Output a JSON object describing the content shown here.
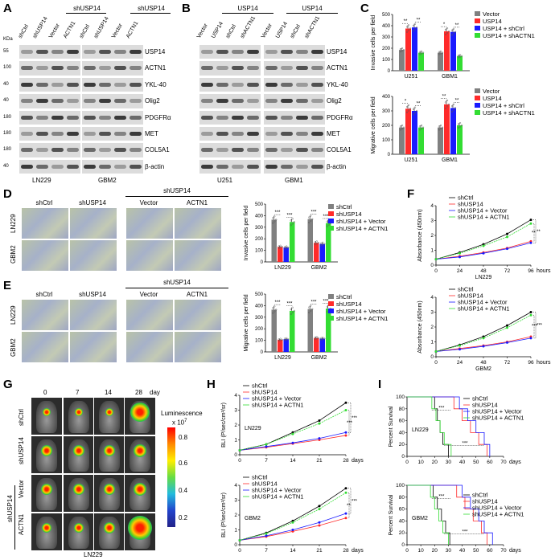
{
  "panels": {
    "A": {
      "letter": "A",
      "group_label": "shUSP14",
      "group_label2": "shUSP14",
      "columns": [
        "shCtrl",
        "shUSP14",
        "Vector",
        "ACTN1",
        "shCtrl",
        "shUSP14",
        "Vector",
        "ACTN1"
      ],
      "kda_header": "KDa",
      "rows": [
        {
          "name": "USP14",
          "kda": "55"
        },
        {
          "name": "ACTN1",
          "kda": "100"
        },
        {
          "name": "YKL-40",
          "kda": "40"
        },
        {
          "name": "Olig2",
          "kda": "40"
        },
        {
          "name": "PDGFRα",
          "kda": "180"
        },
        {
          "name": "MET",
          "kda": "180"
        },
        {
          "name": "COL5A1",
          "kda": "180"
        },
        {
          "name": "β-actin",
          "kda": "40"
        }
      ],
      "cell_lines": [
        "LN229",
        "GBM2"
      ]
    },
    "B": {
      "letter": "B",
      "group_label": "USP14",
      "group_label2": "USP14",
      "columns": [
        "Vector",
        "USP14",
        "shCtrl",
        "shACTN1",
        "Vector",
        "USP14",
        "shCtrl",
        "shACTN1"
      ],
      "rows": [
        {
          "name": "USP14",
          "kda": "55"
        },
        {
          "name": "ACTN1",
          "kda": "100"
        },
        {
          "name": "YKL-40",
          "kda": "40"
        },
        {
          "name": "Olig2",
          "kda": "40"
        },
        {
          "name": "PDGFRα",
          "kda": "180"
        },
        {
          "name": "MET",
          "kda": "180"
        },
        {
          "name": "COL5A1",
          "kda": "180"
        },
        {
          "name": "β-actin",
          "kda": "40"
        }
      ],
      "cell_lines": [
        "U251",
        "GBM1"
      ]
    },
    "C": {
      "letter": "C"
    },
    "D": {
      "letter": "D",
      "group_label": "shUSP14",
      "columns": [
        "shCtrl",
        "shUSP14",
        "Vector",
        "ACTN1"
      ],
      "rows": [
        "LN229",
        "GBM2"
      ]
    },
    "E": {
      "letter": "E",
      "group_label": "shUSP14",
      "columns": [
        "shCtrl",
        "shUSP14",
        "Vector",
        "ACTN1"
      ],
      "rows": [
        "LN229",
        "GBM2"
      ]
    },
    "F": {
      "letter": "F"
    },
    "G": {
      "letter": "G",
      "days": [
        "0",
        "7",
        "14",
        "28"
      ],
      "day_unit": "day",
      "rows": [
        "shCtrl",
        "shUSP14",
        "Vector",
        "ACTN1"
      ],
      "group_label": "shUSP14",
      "cell_line": "LN229",
      "scale_title": "Luminescence",
      "scale_exp": "x 10",
      "scale_exp_sup": "7",
      "scale_ticks": [
        "0.8",
        "0.6",
        "0.4",
        "0.2"
      ]
    },
    "H": {
      "letter": "H"
    },
    "I": {
      "letter": "I"
    }
  },
  "colors": {
    "gray": "#808080",
    "red": "#ff2a2a",
    "blue": "#1a1aff",
    "green": "#33dd33",
    "black": "#000000"
  },
  "chart_data": [
    {
      "id": "C-invasive",
      "type": "bar",
      "ylabel": "Invasive cells per field",
      "ylim": [
        0,
        500
      ],
      "yticks": [
        0,
        100,
        200,
        300,
        400,
        500
      ],
      "categories": [
        "U251",
        "GBM1"
      ],
      "series": [
        {
          "name": "Vector",
          "values": [
            185,
            160
          ]
        },
        {
          "name": "USP14",
          "values": [
            375,
            350
          ]
        },
        {
          "name": "USP14 + shCtrl",
          "values": [
            385,
            345
          ]
        },
        {
          "name": "USP14 + shACTN1",
          "values": [
            160,
            130
          ]
        }
      ],
      "significance": [
        [
          "**",
          "**"
        ],
        [
          "*",
          "**"
        ]
      ],
      "legend": "right"
    },
    {
      "id": "C-migrative",
      "type": "bar",
      "ylabel": "Migrative cells per field",
      "ylim": [
        0,
        400
      ],
      "yticks": [
        0,
        100,
        200,
        300,
        400
      ],
      "categories": [
        "U251",
        "GBM1"
      ],
      "series": [
        {
          "name": "Vector",
          "values": [
            185,
            185
          ]
        },
        {
          "name": "USP14",
          "values": [
            315,
            345
          ]
        },
        {
          "name": "USP14 + shCtrl",
          "values": [
            300,
            320
          ]
        },
        {
          "name": "USP14 + shACTN1",
          "values": [
            185,
            200
          ]
        }
      ],
      "significance": [
        [
          "*",
          "**"
        ],
        [
          "**",
          "**"
        ]
      ],
      "legend": "right"
    },
    {
      "id": "D-invasive",
      "type": "bar",
      "ylabel": "Invasive cells per field",
      "ylim": [
        0,
        500
      ],
      "yticks": [
        0,
        100,
        200,
        300,
        400,
        500
      ],
      "categories": [
        "LN229",
        "GBM2"
      ],
      "series": [
        {
          "name": "shCtrl",
          "values": [
            365,
            370
          ]
        },
        {
          "name": "shUSP14",
          "values": [
            130,
            165
          ]
        },
        {
          "name": "shUSP14 + Vector",
          "values": [
            125,
            155
          ]
        },
        {
          "name": "shUSP14 + ACTN1",
          "values": [
            345,
            335
          ]
        }
      ],
      "significance": [
        [
          "***",
          "***"
        ],
        [
          "***",
          "***"
        ]
      ],
      "legend": "right"
    },
    {
      "id": "E-migrative",
      "type": "bar",
      "ylabel": "Migrative cells per field",
      "ylim": [
        0,
        500
      ],
      "yticks": [
        0,
        100,
        200,
        300,
        400,
        500
      ],
      "categories": [
        "LN229",
        "GBM2"
      ],
      "series": [
        {
          "name": "shCtrl",
          "values": [
            365,
            370
          ]
        },
        {
          "name": "shUSP14",
          "values": [
            105,
            120
          ]
        },
        {
          "name": "shUSP14 + Vector",
          "values": [
            110,
            115
          ]
        },
        {
          "name": "shUSP14 + ACTN1",
          "values": [
            355,
            375
          ]
        }
      ],
      "significance": [
        [
          "***",
          "***"
        ],
        [
          "***",
          "***"
        ]
      ],
      "legend": "right"
    },
    {
      "id": "F-LN229",
      "type": "line",
      "ylabel": "Absorbance (450nm)",
      "xlabel": "LN229",
      "x_unit": "hours",
      "x": [
        0,
        24,
        48,
        72,
        96
      ],
      "ylim": [
        0,
        4
      ],
      "yticks": [
        0,
        1,
        2,
        3,
        4
      ],
      "series": [
        {
          "name": "shCtrl",
          "values": [
            0.4,
            0.85,
            1.4,
            2.1,
            3.05
          ]
        },
        {
          "name": "shUSP14",
          "values": [
            0.4,
            0.6,
            0.85,
            1.15,
            1.6
          ]
        },
        {
          "name": "shUSP14 + Vector",
          "values": [
            0.4,
            0.55,
            0.8,
            1.1,
            1.5
          ]
        },
        {
          "name": "shUSP14 + ACTN1",
          "values": [
            0.4,
            0.8,
            1.3,
            1.9,
            2.8
          ]
        }
      ],
      "significance": [
        "**",
        "**"
      ],
      "legend": "top-left"
    },
    {
      "id": "F-GBM2",
      "type": "line",
      "ylabel": "Absorbance (450nm)",
      "xlabel": "GBM2",
      "x_unit": "hours",
      "x": [
        0,
        24,
        48,
        72,
        96
      ],
      "ylim": [
        0,
        4
      ],
      "yticks": [
        0,
        1,
        2,
        3,
        4
      ],
      "series": [
        {
          "name": "shCtrl",
          "values": [
            0.35,
            0.8,
            1.35,
            2.1,
            3.0
          ]
        },
        {
          "name": "shUSP14",
          "values": [
            0.35,
            0.55,
            0.75,
            1.0,
            1.35
          ]
        },
        {
          "name": "shUSP14 + Vector",
          "values": [
            0.35,
            0.5,
            0.7,
            0.95,
            1.25
          ]
        },
        {
          "name": "shUSP14 + ACTN1",
          "values": [
            0.35,
            0.75,
            1.25,
            1.95,
            2.8
          ]
        }
      ],
      "significance": [
        "***",
        "***"
      ],
      "legend": "top-left"
    },
    {
      "id": "H-LN229",
      "type": "line",
      "ylabel": "BLI (P/sec/cm²/sr)",
      "x_unit": "days",
      "annotation": "LN229",
      "x": [
        0,
        7,
        14,
        21,
        28
      ],
      "ylim": [
        0,
        4
      ],
      "yticks": [
        0,
        1,
        2,
        3,
        4
      ],
      "series": [
        {
          "name": "shCtrl",
          "values": [
            0.3,
            0.7,
            1.5,
            2.3,
            3.5
          ]
        },
        {
          "name": "shUSP14",
          "values": [
            0.3,
            0.5,
            0.75,
            1.0,
            1.3
          ]
        },
        {
          "name": "shUSP14 + Vector",
          "values": [
            0.3,
            0.55,
            0.8,
            1.1,
            1.5
          ]
        },
        {
          "name": "shUSP14 + ACTN1",
          "values": [
            0.3,
            0.7,
            1.4,
            2.1,
            3.0
          ]
        }
      ],
      "significance": [
        "***",
        "***"
      ],
      "legend": "top-left"
    },
    {
      "id": "H-GBM2",
      "type": "line",
      "ylabel": "BLI (P/sec/cm²/sr)",
      "x_unit": "days",
      "annotation": "GBM2",
      "x": [
        0,
        7,
        14,
        21,
        28
      ],
      "ylim": [
        0,
        4
      ],
      "yticks": [
        0,
        1,
        2,
        3,
        4
      ],
      "series": [
        {
          "name": "shCtrl",
          "values": [
            0.3,
            0.8,
            1.6,
            2.6,
            3.8
          ]
        },
        {
          "name": "shUSP14",
          "values": [
            0.3,
            0.55,
            0.9,
            1.3,
            1.8
          ]
        },
        {
          "name": "shUSP14 + Vector",
          "values": [
            0.3,
            0.6,
            1.0,
            1.5,
            2.1
          ]
        },
        {
          "name": "shUSP14 + ACTN1",
          "values": [
            0.3,
            0.75,
            1.5,
            2.4,
            3.5
          ]
        }
      ],
      "significance": [
        "**",
        "***"
      ],
      "legend": "top-left"
    },
    {
      "id": "I-LN229",
      "type": "line",
      "step": true,
      "ylabel": "Percent Survival",
      "x_unit": "days",
      "annotation": "LN229",
      "x": [
        0,
        10,
        20,
        30,
        40,
        50,
        60,
        70
      ],
      "ylim": [
        0,
        100
      ],
      "yticks": [
        0,
        20,
        40,
        60,
        80,
        100
      ],
      "series": [
        {
          "name": "shCtrl",
          "steps": [
            [
              0,
              100
            ],
            [
              18,
              100
            ],
            [
              20,
              80
            ],
            [
              22,
              60
            ],
            [
              24,
              40
            ],
            [
              26,
              20
            ],
            [
              30,
              0
            ]
          ]
        },
        {
          "name": "shUSP14",
          "steps": [
            [
              0,
              100
            ],
            [
              30,
              100
            ],
            [
              34,
              80
            ],
            [
              40,
              60
            ],
            [
              46,
              40
            ],
            [
              52,
              20
            ],
            [
              58,
              0
            ]
          ]
        },
        {
          "name": "shUSP14 + Vector",
          "steps": [
            [
              0,
              100
            ],
            [
              32,
              100
            ],
            [
              38,
              80
            ],
            [
              44,
              60
            ],
            [
              50,
              40
            ],
            [
              56,
              20
            ],
            [
              60,
              0
            ]
          ]
        },
        {
          "name": "shUSP14 + ACTN1",
          "steps": [
            [
              0,
              100
            ],
            [
              16,
              100
            ],
            [
              18,
              80
            ],
            [
              21,
              60
            ],
            [
              24,
              40
            ],
            [
              27,
              20
            ],
            [
              32,
              0
            ]
          ]
        }
      ],
      "significance": [
        "***",
        "***"
      ],
      "legend": "right"
    },
    {
      "id": "I-GBM2",
      "type": "line",
      "step": true,
      "ylabel": "Percent Survival",
      "x_unit": "days",
      "annotation": "GBM2",
      "x": [
        0,
        10,
        20,
        30,
        40,
        50,
        60,
        70
      ],
      "ylim": [
        0,
        100
      ],
      "yticks": [
        0,
        20,
        40,
        60,
        80,
        100
      ],
      "series": [
        {
          "name": "shCtrl",
          "steps": [
            [
              0,
              100
            ],
            [
              16,
              100
            ],
            [
              19,
              80
            ],
            [
              22,
              60
            ],
            [
              25,
              40
            ],
            [
              28,
              20
            ],
            [
              31,
              0
            ]
          ]
        },
        {
          "name": "shUSP14",
          "steps": [
            [
              0,
              100
            ],
            [
              32,
              100
            ],
            [
              36,
              80
            ],
            [
              42,
              60
            ],
            [
              48,
              40
            ],
            [
              54,
              20
            ],
            [
              58,
              0
            ]
          ]
        },
        {
          "name": "shUSP14 + Vector",
          "steps": [
            [
              0,
              100
            ],
            [
              34,
              100
            ],
            [
              40,
              80
            ],
            [
              46,
              60
            ],
            [
              52,
              40
            ],
            [
              56,
              20
            ],
            [
              62,
              0
            ]
          ]
        },
        {
          "name": "shUSP14 + ACTN1",
          "steps": [
            [
              0,
              100
            ],
            [
              14,
              100
            ],
            [
              17,
              80
            ],
            [
              20,
              60
            ],
            [
              23,
              40
            ],
            [
              26,
              20
            ],
            [
              30,
              0
            ]
          ]
        }
      ],
      "significance": [
        "***",
        "***"
      ],
      "legend": "right"
    }
  ]
}
